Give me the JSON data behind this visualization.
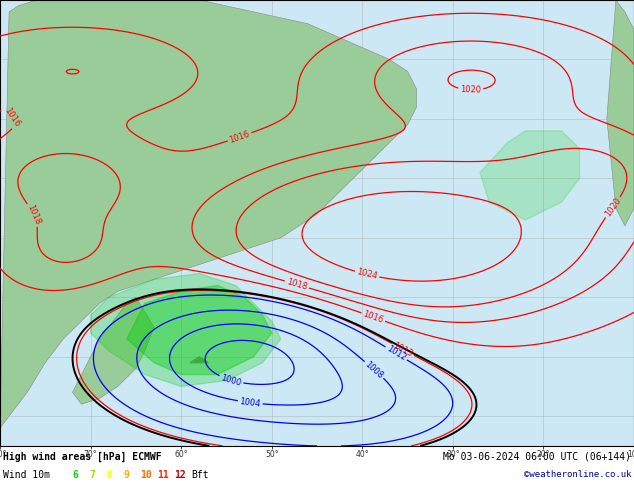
{
  "title_line1": "High wind areas [hPa] ECMWF",
  "title_line2": "Mo 03-06-2024 06:00 UTC (06+144)",
  "credit": "©weatheronline.co.uk",
  "wind_label": "Wind 10m",
  "bft_label": "Bft",
  "bft_values": [
    "6",
    "7",
    "8",
    "9",
    "10",
    "11",
    "12"
  ],
  "bft_colors": [
    "#00dd00",
    "#99dd00",
    "#ffff00",
    "#ffaa00",
    "#ff6600",
    "#ff2200",
    "#cc0000"
  ],
  "ocean_color": "#cce8f5",
  "land_color": "#99cc99",
  "grid_color": "#aaaaaa",
  "contour_color_red": "#ff0000",
  "contour_color_blue": "#0000ff",
  "contour_color_black": "#000000",
  "figsize": [
    6.34,
    4.9
  ],
  "dpi": 100,
  "xlim": [
    -80,
    -10
  ],
  "ylim": [
    -65,
    10
  ],
  "label_fontsize": 7
}
